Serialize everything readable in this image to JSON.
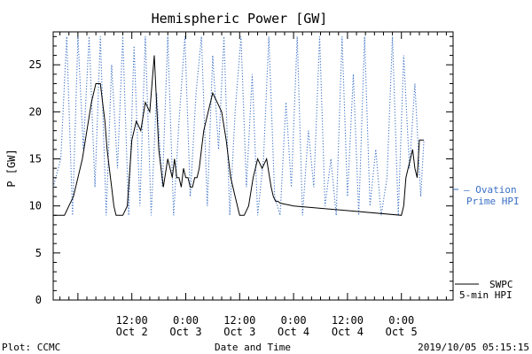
{
  "chart_data": {
    "type": "line",
    "title": "Hemispheric Power [GW]",
    "ylabel": "P [GW]",
    "xlabel": "Date and Time",
    "ylim": [
      0,
      28.5
    ],
    "y_ticks": [
      0,
      5,
      10,
      15,
      20,
      25
    ],
    "x_unit": "hours since 2019-10-02 00:00 UT",
    "xlim": [
      -5.5,
      83.5
    ],
    "x_ticks": [
      {
        "t": 12,
        "time": "12:00",
        "date": "Oct 2"
      },
      {
        "t": 24,
        "time": "0:00",
        "date": "Oct 3"
      },
      {
        "t": 36,
        "time": "12:00",
        "date": "Oct 3"
      },
      {
        "t": 48,
        "time": "0:00",
        "date": "Oct 4"
      },
      {
        "t": 60,
        "time": "12:00",
        "date": "Oct 4"
      },
      {
        "t": 72,
        "time": "0:00",
        "date": "Oct 5"
      }
    ],
    "series": [
      {
        "name": "SWPC 5-min HPI",
        "label_line1": "SWPC",
        "label_line2": "5-min HPI",
        "color": "#000000",
        "style": "solid",
        "x": [
          -5.5,
          -3,
          -2.5,
          -2,
          -1,
          0,
          1,
          2,
          3,
          4,
          5,
          5.5,
          6,
          6.5,
          7,
          7.5,
          8,
          8.5,
          9,
          10,
          11,
          12,
          13,
          14,
          15,
          16,
          17,
          18,
          18.5,
          19,
          20,
          20.5,
          21,
          21.5,
          22,
          22.5,
          23,
          23.5,
          24,
          24.5,
          25,
          25.5,
          26,
          26.5,
          27,
          27.5,
          28,
          29,
          30,
          31,
          32,
          33,
          34,
          35,
          36,
          37,
          38,
          39,
          40,
          41,
          42,
          43,
          43.5,
          44,
          44.5,
          45,
          46,
          47,
          48,
          72,
          72.5,
          73,
          73.5,
          74,
          74.5,
          75,
          75.5,
          76,
          77
        ],
        "values": [
          9,
          9,
          9.5,
          10,
          11,
          13,
          15,
          18,
          21,
          23,
          23,
          21,
          19,
          16,
          14,
          12,
          10,
          9,
          9,
          9,
          10,
          17,
          19,
          18,
          21,
          20,
          26,
          16,
          14,
          12,
          15,
          14,
          13,
          15,
          13,
          13,
          12,
          14,
          13,
          13,
          12,
          12,
          13,
          13,
          14,
          16,
          18,
          20,
          22,
          21,
          20,
          17,
          13,
          11,
          9,
          9,
          10,
          13,
          15,
          14,
          15,
          12,
          11,
          10.5,
          10.5,
          10.3,
          10.2,
          10.1,
          10,
          9,
          10,
          13,
          14,
          15,
          16,
          14,
          13,
          17,
          17
        ]
      },
      {
        "name": "Ovation Prime HPI",
        "label_line1": "— Ovation",
        "label_line2": "Prime HPI",
        "color": "#3a6fc4",
        "style": "dotted",
        "x": [
          -5.5,
          -3.8,
          -2.5,
          -1.2,
          0,
          1.2,
          2.5,
          3.8,
          5,
          6.3,
          7.5,
          8.8,
          10,
          11.3,
          12.5,
          13.8,
          15,
          16.3,
          17.5,
          18.8,
          20,
          21.3,
          22.5,
          23.8,
          25,
          26.3,
          27.5,
          28.8,
          30,
          31.3,
          32.5,
          33.8,
          35,
          36.3,
          37.5,
          38.8,
          40,
          41.3,
          42.5,
          43.8,
          45,
          46.3,
          47.5,
          48.8,
          50,
          51.3,
          52.5,
          53.8,
          55,
          56.3,
          57.5,
          58.8,
          60,
          61.3,
          62.5,
          63.8,
          65,
          66.3,
          67.5,
          68.8,
          70,
          71.3,
          72.5,
          73.8,
          75,
          76.3,
          77
        ],
        "values": [
          12,
          15,
          28,
          9,
          28,
          16,
          28,
          12,
          28,
          9,
          25,
          14,
          28,
          9,
          27,
          10,
          28,
          9,
          22,
          12,
          28,
          9,
          19,
          28,
          11,
          22,
          28,
          10,
          26,
          16,
          28,
          9,
          20,
          28,
          12,
          24,
          9,
          15,
          28,
          11,
          9,
          21,
          12,
          28,
          9,
          18,
          12,
          28,
          10,
          15,
          9,
          28,
          11,
          24,
          9,
          28,
          10,
          16,
          9,
          13,
          28,
          9,
          26,
          14,
          23,
          11,
          17
        ]
      }
    ],
    "footer_left": "Plot: CCMC",
    "footer_right": "2019/10/05 05:15:15"
  }
}
